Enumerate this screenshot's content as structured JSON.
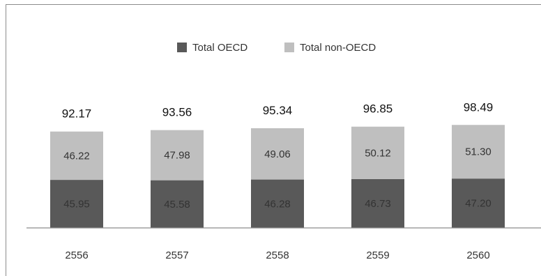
{
  "chart_data": {
    "type": "bar",
    "stacked": true,
    "categories": [
      "2556",
      "2557",
      "2558",
      "2559",
      "2560"
    ],
    "series": [
      {
        "name": "Total OECD",
        "values": [
          45.95,
          45.58,
          46.28,
          46.73,
          47.2
        ],
        "labels": [
          "45.95",
          "45.58",
          "46.28",
          "46.73",
          "47.20"
        ],
        "color": "#595959"
      },
      {
        "name": "Total non-OECD",
        "values": [
          46.22,
          47.98,
          49.06,
          50.12,
          51.3
        ],
        "labels": [
          "46.22",
          "47.98",
          "49.06",
          "50.12",
          "51.30"
        ],
        "color": "#bfbfbf"
      }
    ],
    "totals": [
      92.17,
      93.56,
      95.34,
      96.85,
      98.49
    ],
    "total_labels": [
      "92.17",
      "93.56",
      "95.34",
      "96.85",
      "98.49"
    ],
    "ylim": [
      0,
      140
    ],
    "grid": false,
    "legend": "top-center"
  }
}
